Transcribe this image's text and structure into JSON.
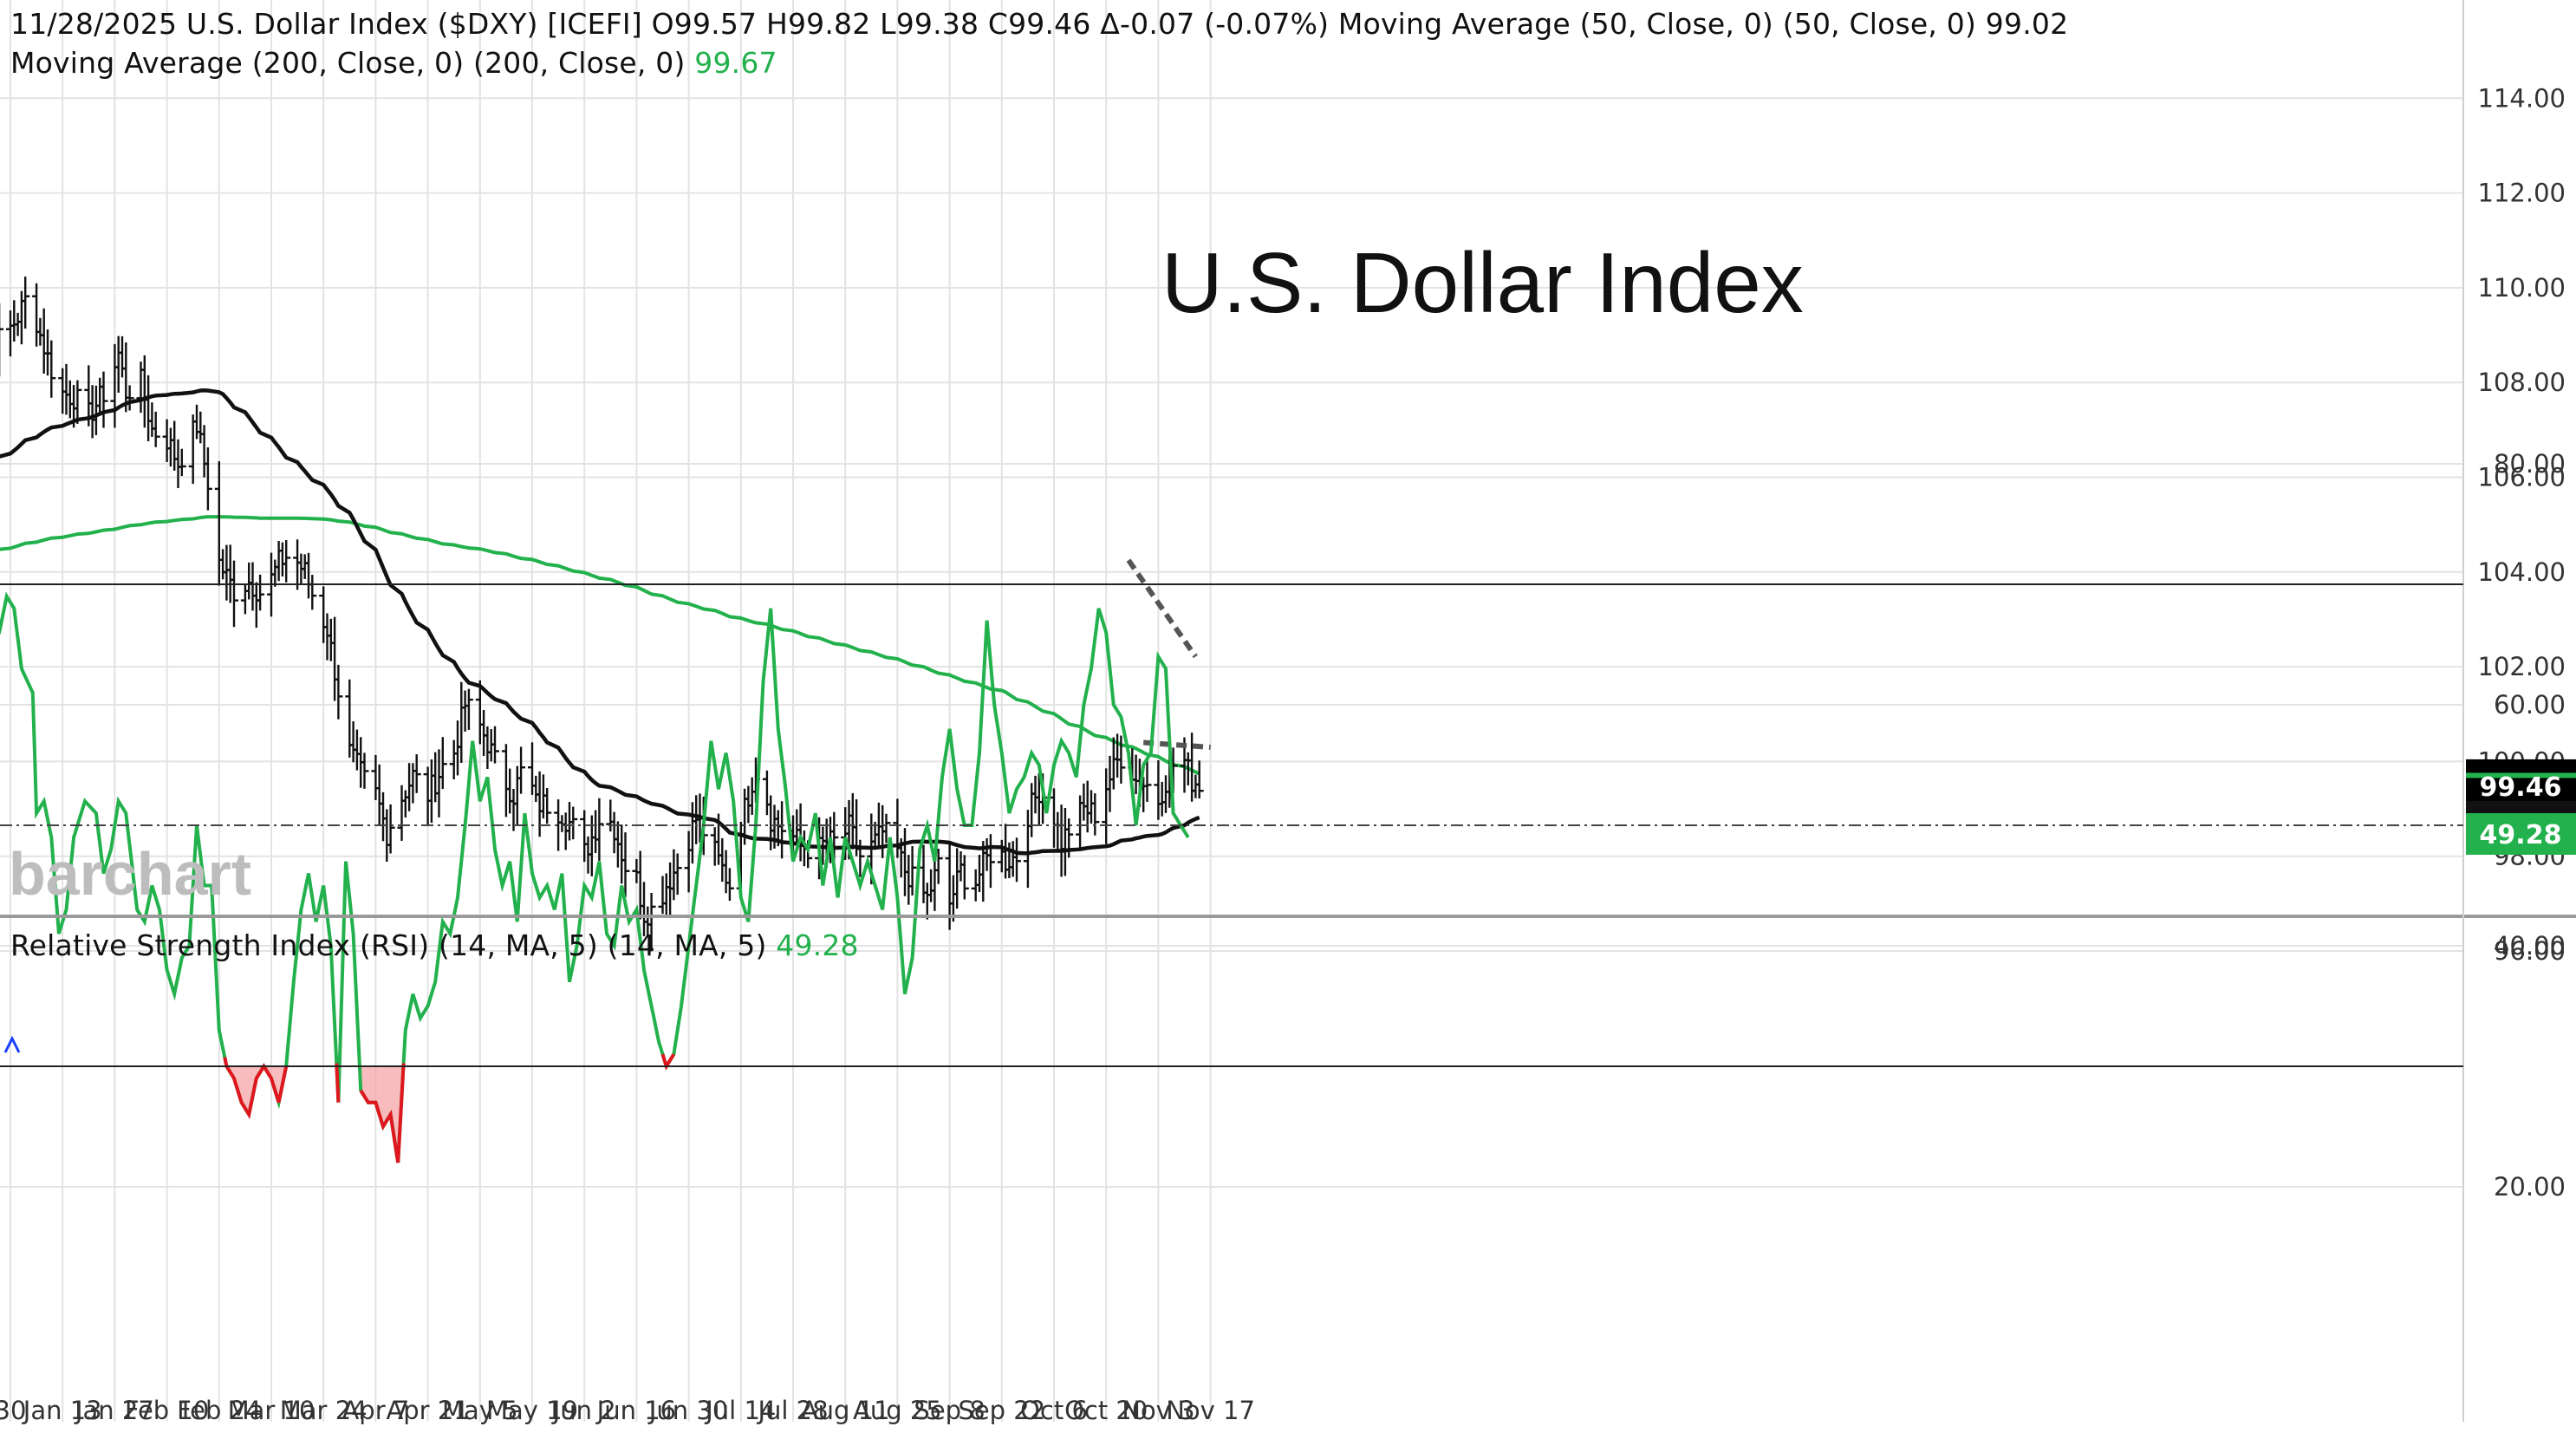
{
  "header": {
    "line1_prefix": "11/28/2025 U.S. Dollar Index ($DXY) [ICEFI] O99.57 H99.82 L99.38 C99.46 Δ-0.07 (-0.07%) Moving Average (50, Close, 0)  (50, Close, 0)",
    "line1_value": "99.02",
    "line2_prefix": "Moving Average (200, Close, 0)  (200, Close, 0)",
    "line2_value": "99.67"
  },
  "title": "U.S. Dollar Index",
  "brand": "barchart",
  "rsi_header": {
    "prefix": "Relative Strength Index (RSI) (14, MA, 5)  (14, MA, 5)",
    "value": "49.28"
  },
  "price_tags": {
    "close": "99.46",
    "behind": "99.02"
  },
  "rsi_tag": "49.28",
  "colors": {
    "price": "#111111",
    "ma50": "#111111",
    "ma200": "#22b14c",
    "rsi": "#22b14c",
    "rsi_oversold": "#e0161e",
    "trend": "#555555",
    "grid": "#e3e3e3",
    "tag_green": "#22b14c"
  },
  "chart_data": [
    {
      "type": "ohlc",
      "title": "U.S. Dollar Index",
      "series_name": "U.S. Dollar Index ($DXY)",
      "ylim": [
        95.2,
        114.5
      ],
      "y_ticks": [
        "96.00",
        "98.00",
        "100.00",
        "102.00",
        "104.00",
        "106.00",
        "108.00",
        "110.00",
        "112.00",
        "114.00"
      ],
      "x_ticks": [
        "30",
        "Jan 13",
        "Jan 27",
        "Feb 10",
        "Feb 24",
        "Mar 10",
        "Mar 24",
        "Apr 7",
        "Apr 21",
        "May 5",
        "May 19",
        "Jun 2",
        "Jun 16",
        "Jun 30",
        "Jul 14",
        "Jul 28",
        "Aug 11",
        "Aug 25",
        "Sep 8",
        "Sep 22",
        "Oct 6",
        "Oct 20",
        "Nov 3",
        "Nov 17"
      ],
      "x_tick_days": [
        0,
        14,
        28,
        42,
        56,
        70,
        84,
        98,
        112,
        126,
        140,
        154,
        168,
        182,
        196,
        210,
        224,
        238,
        252,
        266,
        280,
        294,
        308,
        322
      ],
      "anchors_close": [
        [
          -12,
          108.3
        ],
        [
          -8,
          109.0
        ],
        [
          -2,
          108.9
        ],
        [
          2,
          109.4
        ],
        [
          5,
          109.9
        ],
        [
          8,
          109.0
        ],
        [
          13,
          107.8
        ],
        [
          17,
          107.7
        ],
        [
          21,
          107.3
        ],
        [
          26,
          107.9
        ],
        [
          29,
          108.6
        ],
        [
          31,
          107.8
        ],
        [
          35,
          108.0
        ],
        [
          38,
          107.0
        ],
        [
          42,
          106.8
        ],
        [
          45,
          106.3
        ],
        [
          50,
          107.1
        ],
        [
          53,
          105.9
        ],
        [
          56,
          104.2
        ],
        [
          60,
          103.6
        ],
        [
          64,
          103.8
        ],
        [
          68,
          103.5
        ],
        [
          72,
          104.2
        ],
        [
          75,
          104.4
        ],
        [
          79,
          104.0
        ],
        [
          82,
          103.3
        ],
        [
          85,
          102.8
        ],
        [
          88,
          101.5
        ],
        [
          91,
          100.2
        ],
        [
          95,
          99.6
        ],
        [
          98,
          99.3
        ],
        [
          101,
          98.5
        ],
        [
          104,
          99.1
        ],
        [
          108,
          99.7
        ],
        [
          112,
          99.3
        ],
        [
          116,
          99.9
        ],
        [
          119,
          100.2
        ],
        [
          122,
          101.2
        ],
        [
          125,
          100.9
        ],
        [
          128,
          100.4
        ],
        [
          131,
          99.8
        ],
        [
          135,
          99.3
        ],
        [
          138,
          100.0
        ],
        [
          141,
          99.1
        ],
        [
          145,
          99.1
        ],
        [
          148,
          98.9
        ],
        [
          151,
          98.6
        ],
        [
          153,
          97.9
        ],
        [
          156,
          98.4
        ],
        [
          159,
          99.0
        ],
        [
          162,
          98.6
        ],
        [
          165,
          97.8
        ],
        [
          168,
          97.5
        ],
        [
          170,
          96.8
        ],
        [
          173,
          96.9
        ],
        [
          176,
          97.4
        ],
        [
          179,
          97.8
        ],
        [
          182,
          98.4
        ],
        [
          184,
          98.8
        ],
        [
          187,
          98.4
        ],
        [
          190,
          97.9
        ],
        [
          193,
          97.4
        ],
        [
          196,
          98.7
        ],
        [
          199,
          99.6
        ],
        [
          201,
          100.0
        ],
        [
          204,
          98.8
        ],
        [
          207,
          98.6
        ],
        [
          210,
          98.4
        ],
        [
          213,
          98.2
        ],
        [
          216,
          98.1
        ],
        [
          219,
          98.3
        ],
        [
          222,
          98.3
        ],
        [
          225,
          98.6
        ],
        [
          228,
          98.0
        ],
        [
          231,
          98.2
        ],
        [
          234,
          98.5
        ],
        [
          237,
          98.3
        ],
        [
          240,
          97.7
        ],
        [
          243,
          97.4
        ],
        [
          246,
          97.1
        ],
        [
          249,
          97.8
        ],
        [
          252,
          97.0
        ],
        [
          255,
          97.7
        ],
        [
          258,
          97.3
        ],
        [
          261,
          97.8
        ],
        [
          264,
          98.2
        ],
        [
          267,
          97.9
        ],
        [
          270,
          98.0
        ],
        [
          273,
          98.9
        ],
        [
          276,
          99.4
        ],
        [
          279,
          99.1
        ],
        [
          282,
          98.3
        ],
        [
          285,
          98.7
        ],
        [
          288,
          99.0
        ],
        [
          291,
          98.9
        ],
        [
          294,
          99.5
        ],
        [
          297,
          100.0
        ],
        [
          299,
          100.2
        ],
        [
          302,
          99.6
        ],
        [
          305,
          99.5
        ],
        [
          308,
          99.2
        ],
        [
          311,
          99.8
        ],
        [
          314,
          100.2
        ],
        [
          317,
          99.6
        ],
        [
          320,
          99.5
        ]
      ],
      "moving_average_50": {
        "name": "Moving Average (50, Close, 0)",
        "last": 99.02
      },
      "moving_average_200": {
        "name": "Moving Average (200, Close, 0)",
        "last": 99.67
      },
      "last_close": 99.46,
      "resistance_line": [
        [
          304,
          100.4
        ],
        [
          322,
          100.3
        ]
      ]
    },
    {
      "type": "line",
      "series_name": "Relative Strength Index (RSI) (14, MA, 5)",
      "ylim": [
        17,
        90
      ],
      "y_ticks": [
        "20.00",
        "40.00",
        "60.00",
        "80.00"
      ],
      "levels": [
        70,
        30,
        50
      ],
      "anchors": [
        [
          -12,
          69
        ],
        [
          -10,
          72
        ],
        [
          -8,
          60
        ],
        [
          -6,
          64
        ],
        [
          -3,
          66
        ],
        [
          -1,
          69
        ],
        [
          1,
          68
        ],
        [
          3,
          63
        ],
        [
          6,
          61
        ],
        [
          7,
          51
        ],
        [
          9,
          52
        ],
        [
          11,
          49
        ],
        [
          13,
          41
        ],
        [
          15,
          43
        ],
        [
          17,
          49
        ],
        [
          20,
          52
        ],
        [
          23,
          51
        ],
        [
          25,
          46
        ],
        [
          27,
          48
        ],
        [
          29,
          52
        ],
        [
          31,
          51
        ],
        [
          34,
          43
        ],
        [
          36,
          42
        ],
        [
          38,
          45
        ],
        [
          40,
          43
        ],
        [
          42,
          38
        ],
        [
          44,
          36
        ],
        [
          46,
          39
        ],
        [
          48,
          40
        ],
        [
          50,
          50
        ],
        [
          52,
          45
        ],
        [
          54,
          45
        ],
        [
          56,
          33
        ],
        [
          58,
          30
        ],
        [
          60,
          29
        ],
        [
          62,
          27
        ],
        [
          64,
          26
        ],
        [
          66,
          29
        ],
        [
          68,
          30
        ],
        [
          70,
          29
        ],
        [
          72,
          27
        ],
        [
          74,
          30
        ],
        [
          76,
          37
        ],
        [
          78,
          43
        ],
        [
          80,
          46
        ],
        [
          82,
          42
        ],
        [
          84,
          45
        ],
        [
          86,
          40
        ],
        [
          88,
          27
        ],
        [
          90,
          47
        ],
        [
          92,
          41
        ],
        [
          94,
          28
        ],
        [
          96,
          27
        ],
        [
          98,
          27
        ],
        [
          100,
          25
        ],
        [
          102,
          26
        ],
        [
          104,
          22
        ],
        [
          106,
          33
        ],
        [
          108,
          36
        ],
        [
          110,
          34
        ],
        [
          112,
          35
        ],
        [
          114,
          37
        ],
        [
          116,
          42
        ],
        [
          118,
          41
        ],
        [
          120,
          44
        ],
        [
          122,
          50
        ],
        [
          124,
          57
        ],
        [
          126,
          52
        ],
        [
          128,
          54
        ],
        [
          130,
          48
        ],
        [
          132,
          45
        ],
        [
          134,
          47
        ],
        [
          136,
          42
        ],
        [
          138,
          51
        ],
        [
          140,
          46
        ],
        [
          142,
          44
        ],
        [
          144,
          45
        ],
        [
          146,
          43
        ],
        [
          148,
          46
        ],
        [
          150,
          37
        ],
        [
          152,
          40
        ],
        [
          154,
          45
        ],
        [
          156,
          44
        ],
        [
          158,
          47
        ],
        [
          160,
          41
        ],
        [
          162,
          40
        ],
        [
          164,
          45
        ],
        [
          166,
          42
        ],
        [
          168,
          43
        ],
        [
          170,
          38
        ],
        [
          172,
          35
        ],
        [
          174,
          32
        ],
        [
          176,
          30
        ],
        [
          178,
          31
        ],
        [
          180,
          35
        ],
        [
          182,
          40
        ],
        [
          184,
          45
        ],
        [
          186,
          50
        ],
        [
          188,
          57
        ],
        [
          190,
          53
        ],
        [
          192,
          56
        ],
        [
          194,
          52
        ],
        [
          196,
          44
        ],
        [
          198,
          42
        ],
        [
          200,
          50
        ],
        [
          202,
          62
        ],
        [
          204,
          68
        ],
        [
          206,
          58
        ],
        [
          208,
          53
        ],
        [
          210,
          47
        ],
        [
          212,
          49
        ],
        [
          214,
          48
        ],
        [
          216,
          51
        ],
        [
          218,
          45
        ],
        [
          220,
          49
        ],
        [
          222,
          44
        ],
        [
          224,
          49
        ],
        [
          226,
          47
        ],
        [
          228,
          45
        ],
        [
          230,
          47
        ],
        [
          232,
          45
        ],
        [
          234,
          43
        ],
        [
          236,
          49
        ],
        [
          238,
          44
        ],
        [
          240,
          36
        ],
        [
          242,
          39
        ],
        [
          244,
          48
        ],
        [
          246,
          50
        ],
        [
          248,
          47
        ],
        [
          250,
          54
        ],
        [
          252,
          58
        ],
        [
          254,
          53
        ],
        [
          256,
          50
        ],
        [
          258,
          50
        ],
        [
          260,
          56
        ],
        [
          262,
          67
        ],
        [
          264,
          60
        ],
        [
          266,
          56
        ],
        [
          268,
          51
        ],
        [
          270,
          53
        ],
        [
          272,
          54
        ],
        [
          274,
          56
        ],
        [
          276,
          55
        ],
        [
          278,
          51
        ],
        [
          280,
          55
        ],
        [
          282,
          57
        ],
        [
          284,
          56
        ],
        [
          286,
          54
        ],
        [
          288,
          60
        ],
        [
          290,
          63
        ],
        [
          292,
          68
        ],
        [
          294,
          66
        ],
        [
          296,
          60
        ],
        [
          298,
          59
        ],
        [
          300,
          56
        ],
        [
          302,
          50
        ],
        [
          304,
          55
        ],
        [
          306,
          56
        ],
        [
          308,
          64
        ],
        [
          310,
          63
        ],
        [
          312,
          51
        ],
        [
          314,
          50
        ],
        [
          316,
          49
        ]
      ],
      "last": 49.28,
      "trend_line": [
        [
          300,
          72
        ],
        [
          318,
          64
        ]
      ]
    }
  ]
}
